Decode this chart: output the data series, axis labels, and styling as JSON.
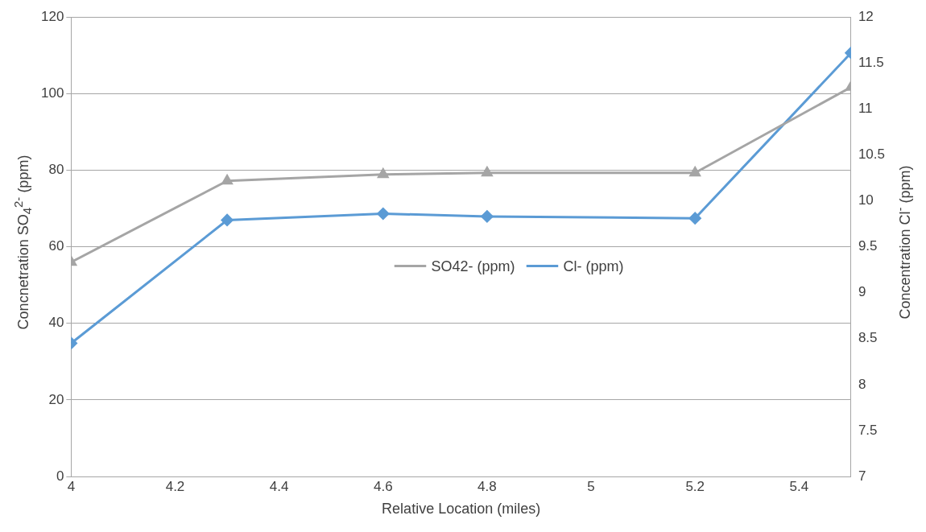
{
  "chart_data": {
    "type": "line",
    "xlabel": "Relative Location (miles)",
    "ylabel": "Concnetration SO$_{4}$$^{2-}$ (ppm)",
    "y2label": "Concentration Cl$^{-}$ (ppm)",
    "xlim": [
      4,
      5.5
    ],
    "xticks": [
      4,
      4.2,
      4.4,
      4.6,
      4.8,
      5,
      5.2,
      5.4
    ],
    "ylim": [
      0,
      120
    ],
    "yticks": [
      0,
      20,
      40,
      60,
      80,
      100,
      120
    ],
    "y2lim": [
      7,
      12
    ],
    "y2ticks": [
      7,
      7.5,
      8,
      8.5,
      9,
      9.5,
      10,
      10.5,
      11,
      11.5,
      12
    ],
    "grid": "y",
    "legend": "center",
    "line_style": "solid",
    "series": [
      {
        "name": "SO42- (ppm)",
        "color": "#a5a5a5",
        "marker": "triangle",
        "x": [
          4,
          4.3,
          4.6,
          4.8,
          5.2,
          5.5
        ],
        "values": [
          56,
          77.2,
          78.9,
          79.3,
          79.3,
          101.7
        ]
      },
      {
        "name": "Cl- (ppm)",
        "color": "#5b9bd5",
        "marker": "diamond",
        "axis": "y2",
        "x": [
          4,
          4.3,
          4.6,
          4.8,
          5.2,
          5.5
        ],
        "values": [
          8.45,
          9.79,
          9.86,
          9.83,
          9.81,
          11.61
        ]
      }
    ]
  }
}
